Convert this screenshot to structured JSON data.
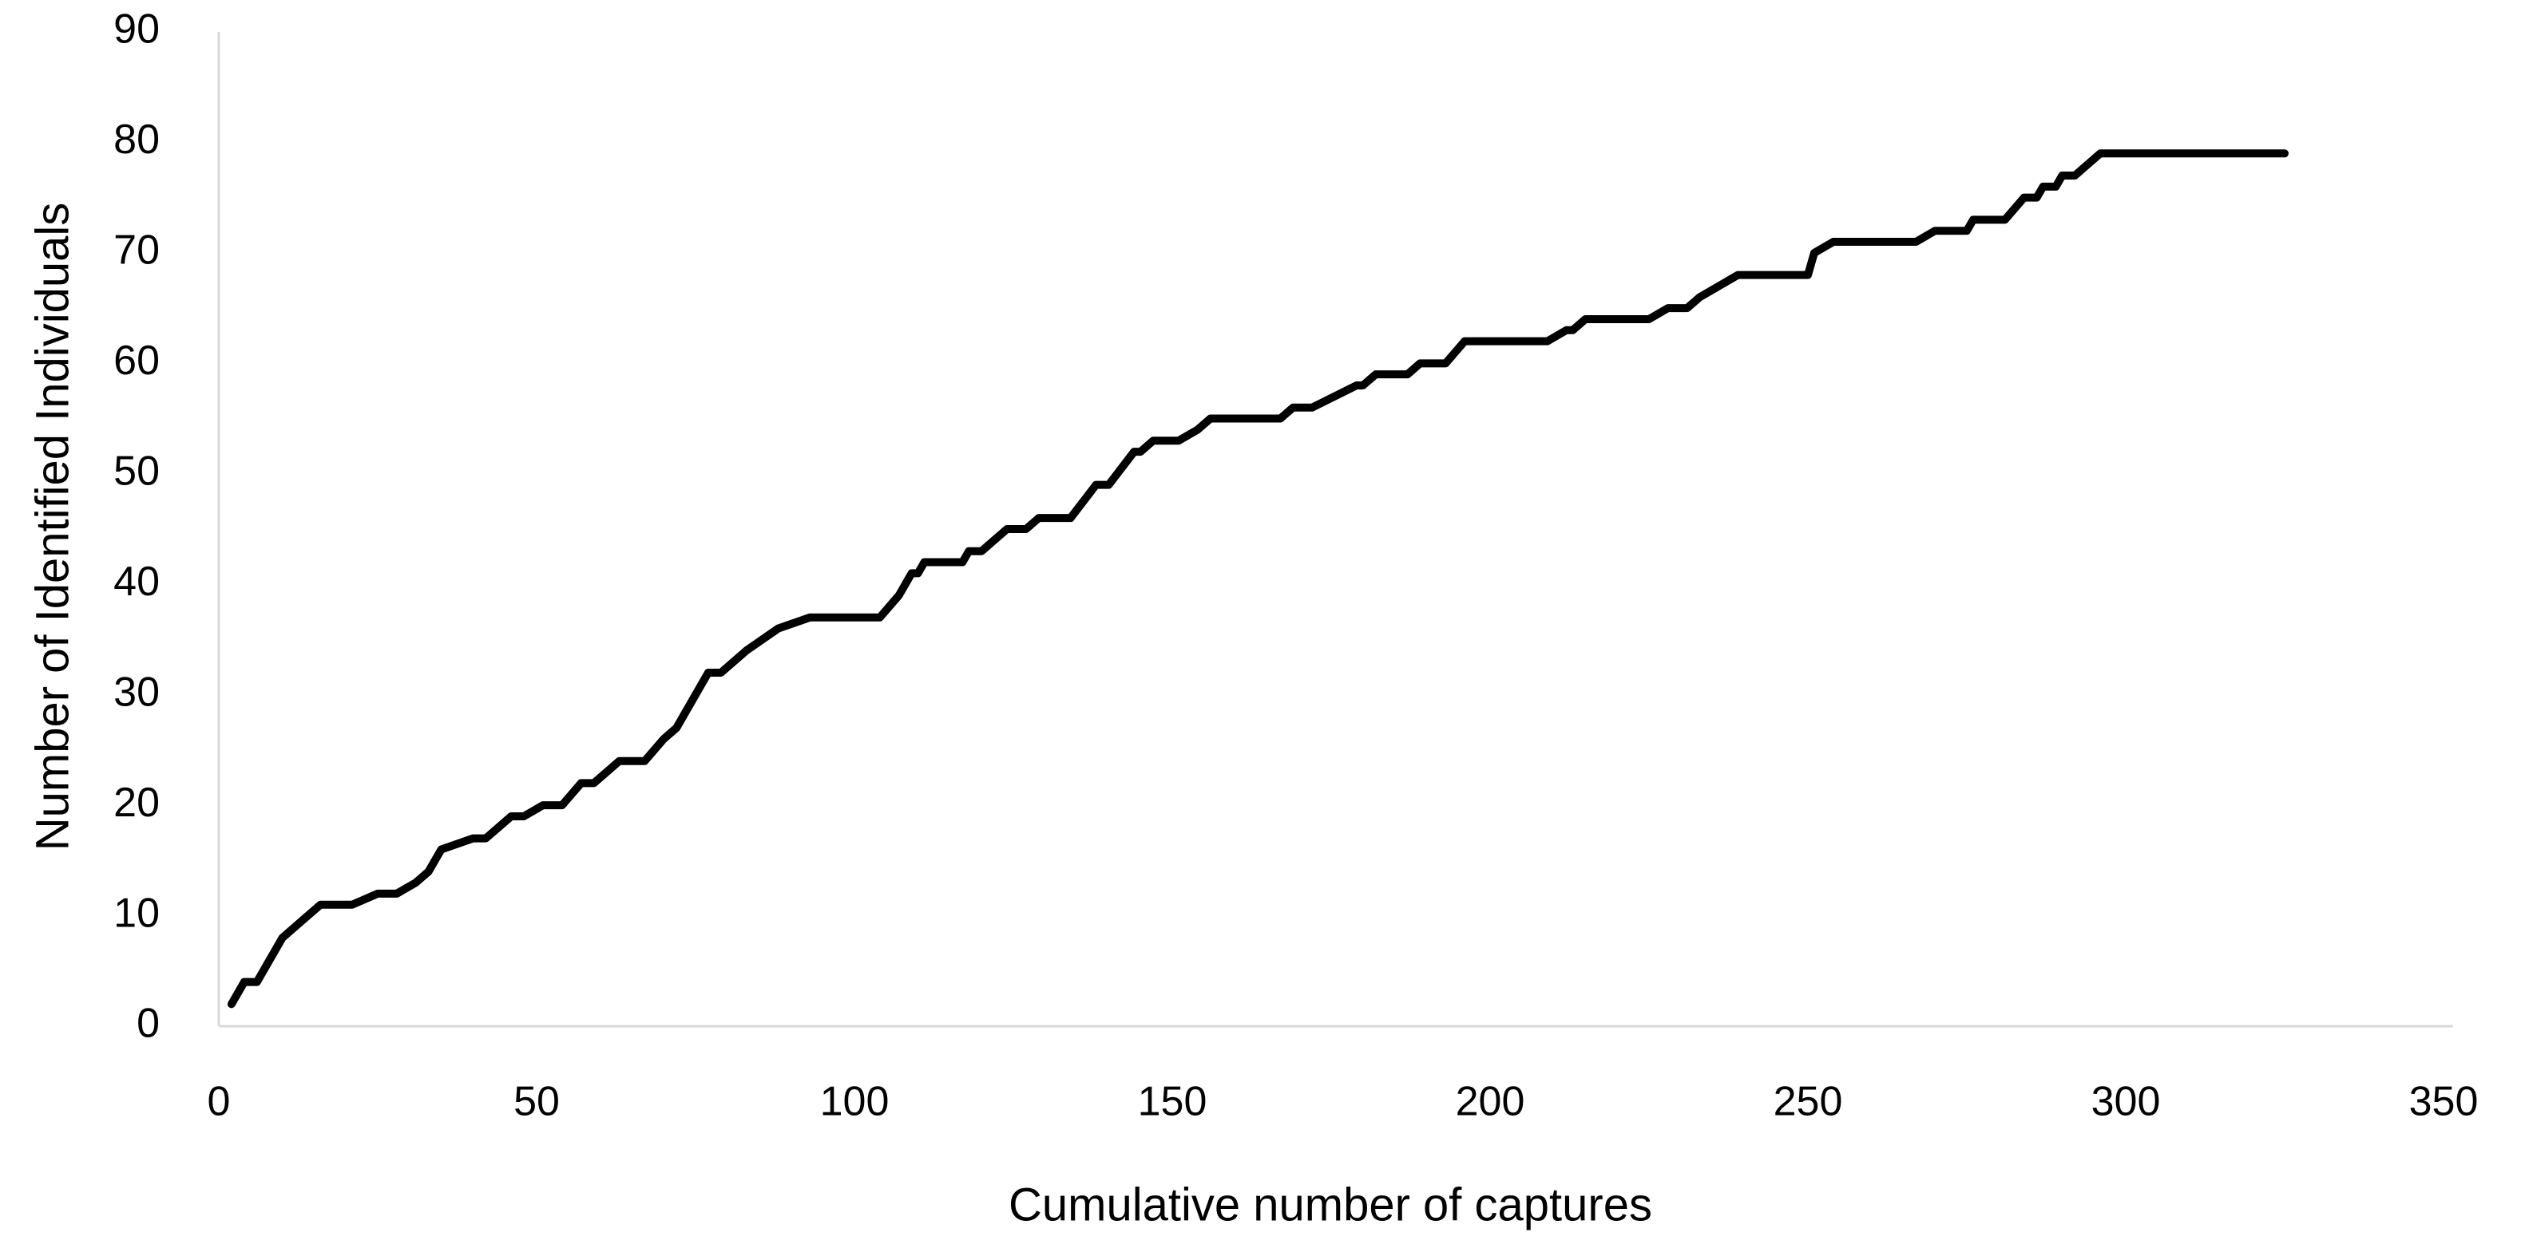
{
  "chart_data": {
    "type": "line",
    "x_label": "Cumulative number of captures",
    "y_label": "Number of Identified Individuals",
    "x": [
      2,
      4,
      6,
      10,
      16,
      21,
      25,
      28,
      31,
      33,
      35,
      40,
      42,
      46,
      48,
      51,
      54,
      57,
      59,
      63,
      67,
      70,
      72,
      74,
      77,
      79,
      83,
      88,
      93,
      104,
      107,
      109,
      110,
      111,
      117,
      118,
      120,
      124,
      127,
      129,
      134,
      138,
      140,
      144,
      145,
      147,
      151,
      154,
      156,
      167,
      169,
      172,
      179,
      180,
      182,
      187,
      189,
      193,
      196,
      209,
      212,
      213,
      215,
      225,
      228,
      231,
      233,
      236,
      239,
      250,
      251,
      254,
      267,
      270,
      275,
      276,
      281,
      284,
      286,
      287,
      289,
      290,
      292,
      296,
      325
    ],
    "series": [
      {
        "color": "#000000",
        "values": [
          2,
          4,
          4,
          8,
          11,
          11,
          12,
          12,
          13,
          14,
          16,
          17,
          17,
          19,
          19,
          20,
          20,
          22,
          22,
          24,
          24,
          26,
          27,
          29,
          32,
          32,
          34,
          36,
          37,
          37,
          39,
          41,
          41,
          42,
          42,
          43,
          43,
          45,
          45,
          46,
          46,
          49,
          49,
          52,
          52,
          53,
          53,
          54,
          55,
          55,
          56,
          56,
          58,
          58,
          59,
          59,
          60,
          60,
          62,
          62,
          63,
          63,
          64,
          64,
          65,
          65,
          66,
          67,
          68,
          68,
          70,
          71,
          71,
          72,
          72,
          73,
          73,
          75,
          75,
          76,
          76,
          77,
          77,
          79,
          79
        ]
      }
    ],
    "xlim": [
      0,
      350
    ],
    "xticks": [
      0,
      50,
      100,
      150,
      200,
      250,
      300,
      350
    ],
    "ylim": [
      0,
      90
    ],
    "yticks": [
      0,
      10,
      20,
      30,
      40,
      50,
      60,
      70,
      80,
      90
    ],
    "grid": false
  }
}
